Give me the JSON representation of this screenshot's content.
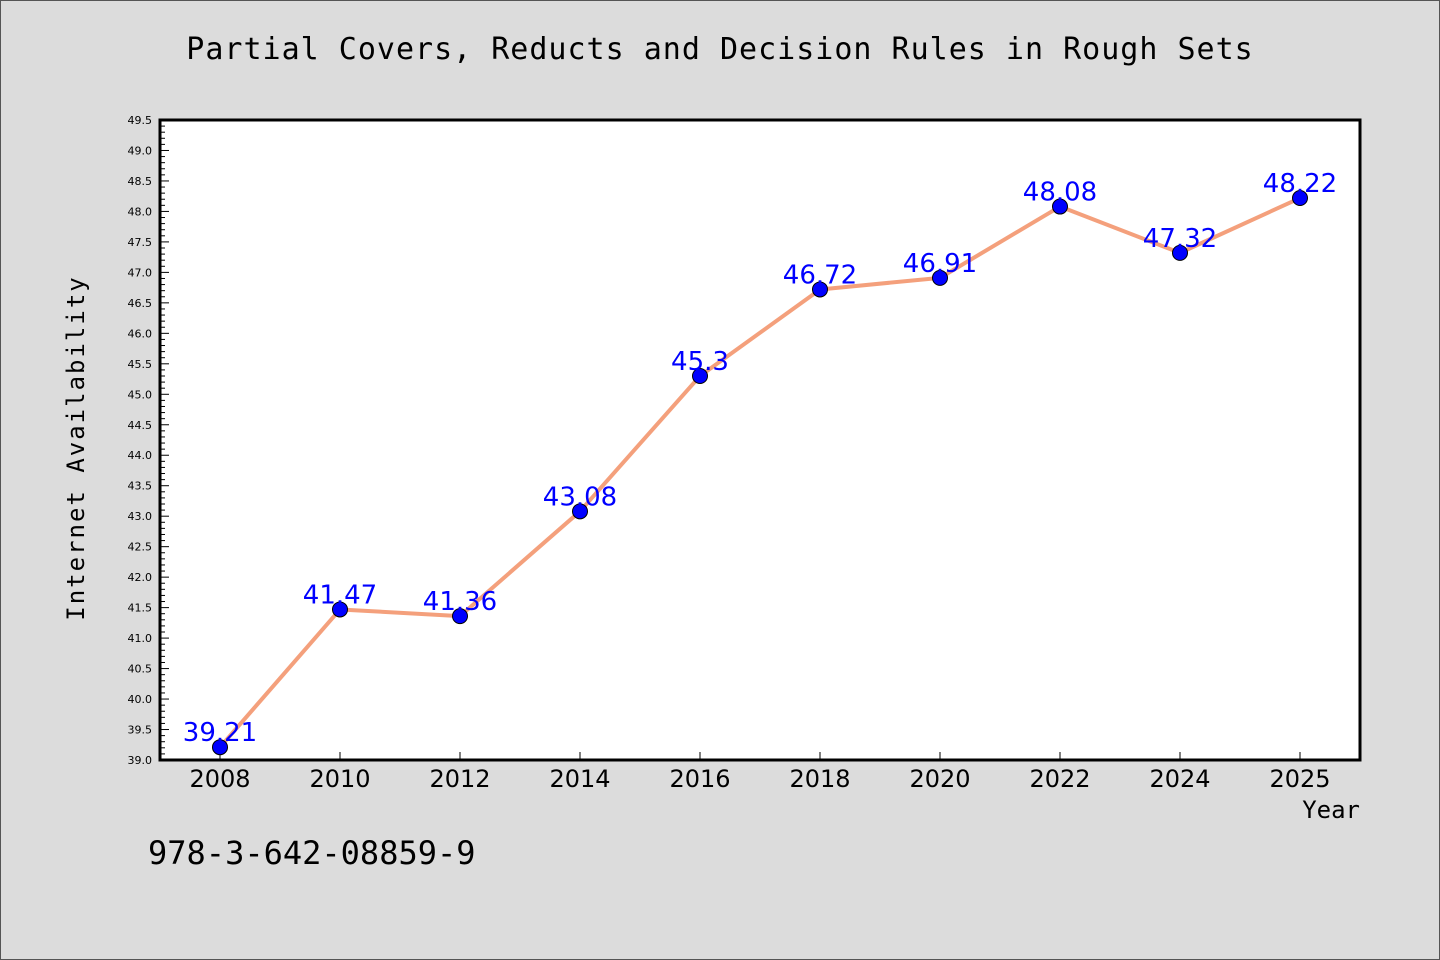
{
  "chart_data": {
    "type": "line",
    "title": "Partial Covers, Reducts and Decision Rules in Rough Sets",
    "xlabel": "Year",
    "ylabel": "Internet Availability",
    "categories": [
      "2008",
      "2010",
      "2012",
      "2014",
      "2016",
      "2018",
      "2020",
      "2022",
      "2024",
      "2025"
    ],
    "series": [
      {
        "values": [
          39.21,
          41.47,
          41.36,
          43.08,
          45.3,
          46.72,
          46.91,
          48.08,
          47.32,
          48.22
        ],
        "labels": [
          "39.21",
          "41.47",
          "41.36",
          "43.08",
          "45.3",
          "46.72",
          "46.91",
          "48.08",
          "47.32",
          "48.22"
        ]
      }
    ],
    "ylim": [
      39.0,
      49.5
    ],
    "yticks": [
      "39.0",
      "39.5",
      "40.0",
      "40.5",
      "41.0",
      "41.5",
      "42.0",
      "42.5",
      "43.0",
      "43.5",
      "44.0",
      "44.5",
      "45.0",
      "45.5",
      "46.0",
      "46.5",
      "47.0",
      "47.5",
      "48.0",
      "48.5",
      "49.0",
      "49.5"
    ],
    "grid": false,
    "colors": {
      "line": "#f4a07c",
      "marker": "#0000ff",
      "label": "#0000ff"
    }
  },
  "footer": {
    "isbn": "978-3-642-08859-9"
  }
}
